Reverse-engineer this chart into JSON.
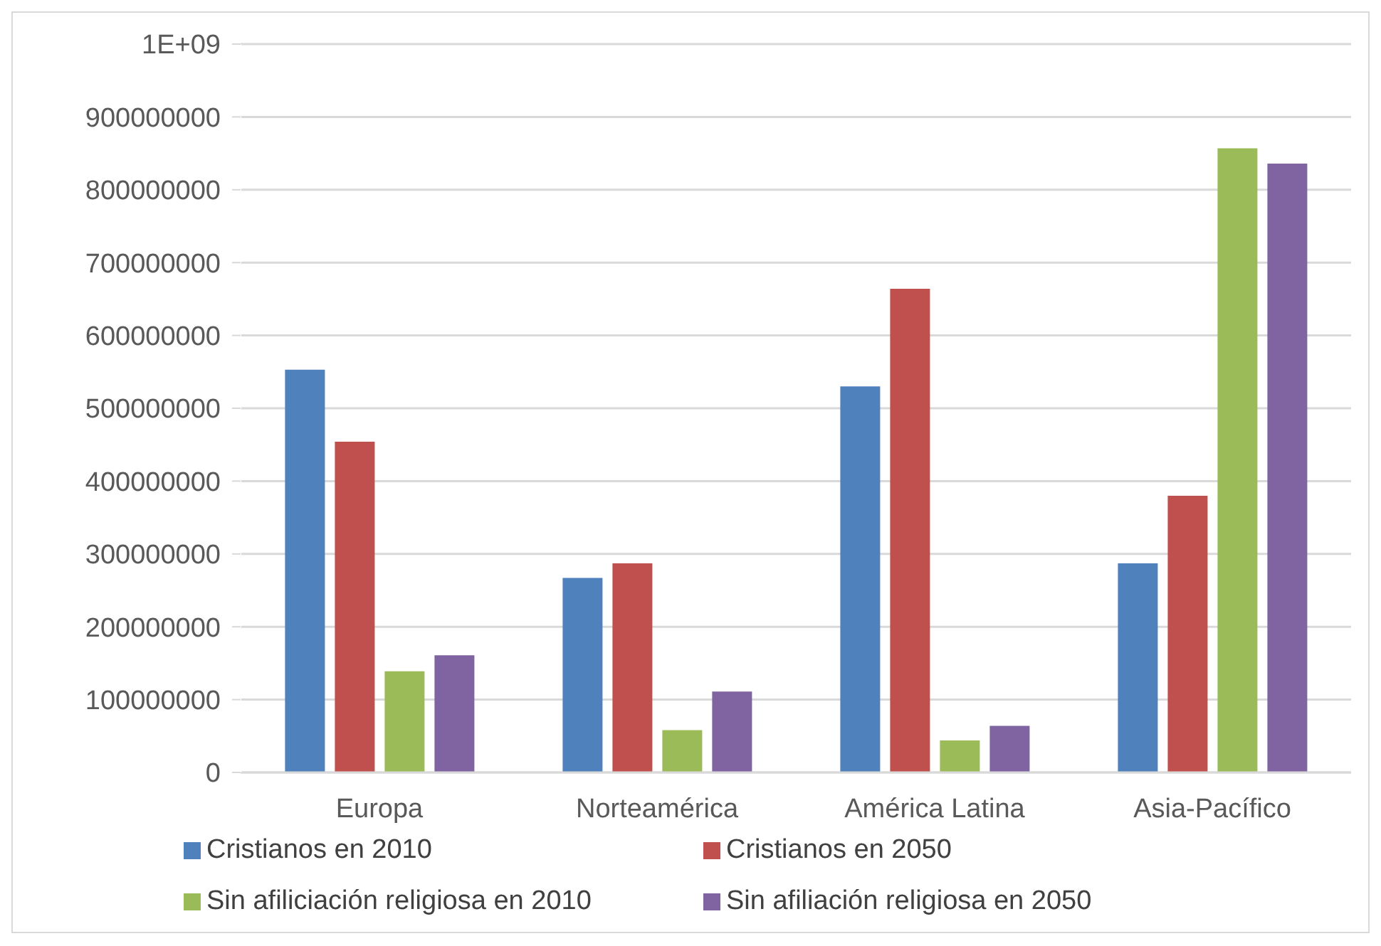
{
  "chart_data": {
    "type": "bar",
    "categories": [
      "Europa",
      "Norteamérica",
      "América Latina",
      "Asia-Pacífico"
    ],
    "series": [
      {
        "name": "Cristianos en 2010",
        "color": "#4f81bd",
        "values": [
          553000000,
          267000000,
          530000000,
          287000000
        ]
      },
      {
        "name": "Cristianos en 2050",
        "color": "#c0504d",
        "values": [
          454000000,
          287000000,
          664000000,
          380000000
        ]
      },
      {
        "name": "Sin afiliciación religiosa en 2010",
        "color": "#9bbb59",
        "values": [
          139000000,
          58000000,
          44000000,
          857000000
        ]
      },
      {
        "name": "Sin afiliación religiosa en 2050",
        "color": "#8064a2",
        "values": [
          161000000,
          111000000,
          64000000,
          836000000
        ]
      }
    ],
    "ylim": [
      0,
      1000000000
    ],
    "yticks": [
      0,
      100000000,
      200000000,
      300000000,
      400000000,
      500000000,
      600000000,
      700000000,
      800000000,
      900000000,
      {
        "value": 1000000000,
        "label": "1E+09"
      }
    ],
    "grid": "y",
    "legend": "bottom"
  }
}
